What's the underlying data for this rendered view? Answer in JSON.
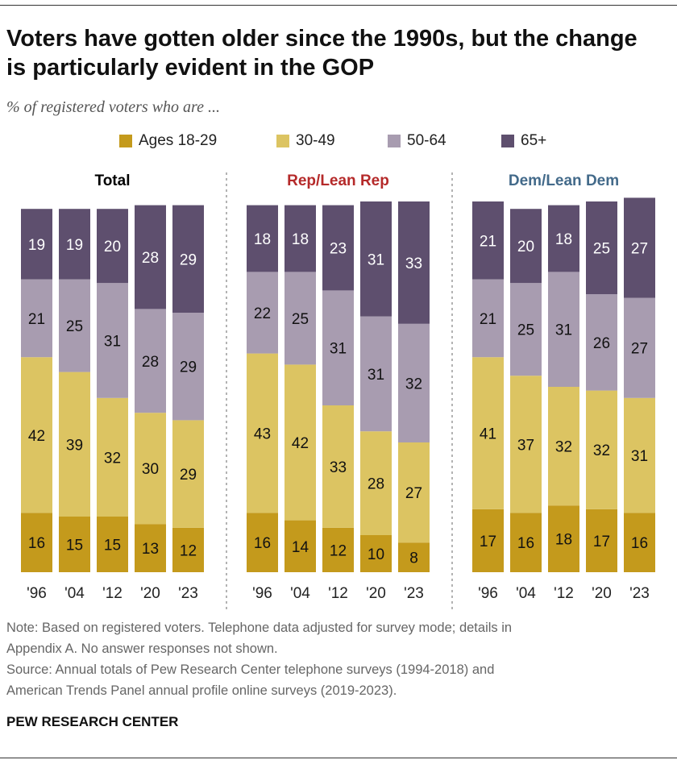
{
  "title": "Voters have gotten older since the 1990s, but the change is particularly evident in the GOP",
  "subtitle": "% of registered voters who are ...",
  "legend": [
    {
      "label": "Ages 18-29",
      "color": "#c49a1c"
    },
    {
      "label": "30-49",
      "color": "#dcc462"
    },
    {
      "label": "50-64",
      "color": "#a89cb0"
    },
    {
      "label": "65+",
      "color": "#5e4f6e"
    }
  ],
  "chart_data": {
    "type": "bar",
    "stacked": true,
    "orientation": "vertical",
    "categories": [
      "'96",
      "'04",
      "'12",
      "'20",
      "'23"
    ],
    "panel_colors": {
      "Total": "#000000",
      "Rep/Lean Rep": "#b52a2a",
      "Dem/Lean Dem": "#436a8a"
    },
    "panels": [
      {
        "title": "Total",
        "series": [
          {
            "name": "Ages 18-29",
            "values": [
              16,
              15,
              15,
              13,
              12
            ]
          },
          {
            "name": "30-49",
            "values": [
              42,
              39,
              32,
              30,
              29
            ]
          },
          {
            "name": "50-64",
            "values": [
              21,
              25,
              31,
              28,
              29
            ]
          },
          {
            "name": "65+",
            "values": [
              19,
              19,
              20,
              28,
              29
            ]
          }
        ]
      },
      {
        "title": "Rep/Lean Rep",
        "series": [
          {
            "name": "Ages 18-29",
            "values": [
              16,
              14,
              12,
              10,
              8
            ]
          },
          {
            "name": "30-49",
            "values": [
              43,
              42,
              33,
              28,
              27
            ]
          },
          {
            "name": "50-64",
            "values": [
              22,
              25,
              31,
              31,
              32
            ]
          },
          {
            "name": "65+",
            "values": [
              18,
              18,
              23,
              31,
              33
            ]
          }
        ]
      },
      {
        "title": "Dem/Lean Dem",
        "series": [
          {
            "name": "Ages 18-29",
            "values": [
              17,
              16,
              18,
              17,
              16
            ]
          },
          {
            "name": "30-49",
            "values": [
              41,
              37,
              32,
              32,
              31
            ]
          },
          {
            "name": "50-64",
            "values": [
              21,
              25,
              31,
              26,
              27
            ]
          },
          {
            "name": "65+",
            "values": [
              21,
              20,
              18,
              25,
              27
            ]
          }
        ]
      }
    ],
    "ylim": [
      0,
      100
    ],
    "grid": false,
    "legend_position": "top"
  },
  "notes": {
    "note_line1": "Note: Based on registered voters. Telephone data adjusted for survey mode; details in",
    "note_line2": "Appendix A. No answer responses not shown.",
    "source_line1": "Source: Annual totals of Pew Research Center telephone surveys (1994-2018) and",
    "source_line2": "American Trends Panel annual profile online surveys (2019-2023)."
  },
  "credit": "PEW RESEARCH CENTER"
}
